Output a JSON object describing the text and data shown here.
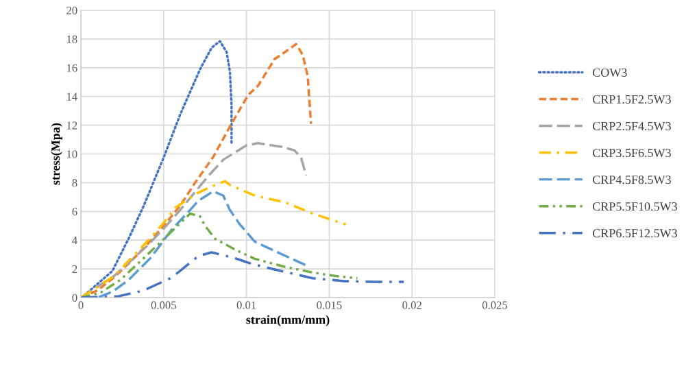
{
  "chart_data": {
    "type": "line",
    "xlabel": "strain(mm/mm)",
    "ylabel": "stress(Mpa)",
    "xlim": [
      0,
      0.025
    ],
    "xticks": [
      0,
      0.005,
      0.01,
      0.015,
      0.02,
      0.025
    ],
    "ylim": [
      0,
      20
    ],
    "yticks": [
      0,
      2,
      4,
      6,
      8,
      10,
      12,
      14,
      16,
      18,
      20
    ],
    "grid": true,
    "legend": "right",
    "marker": "none",
    "series": [
      {
        "name": "COW3",
        "color": "#4472c4",
        "line_style": "dotted",
        "x": [
          0,
          0.0003,
          0.0019,
          0.0029,
          0.0038,
          0.005,
          0.006,
          0.0072,
          0.0079,
          0.0084,
          0.0088,
          0.009,
          0.0091,
          0.0091
        ],
        "values": [
          0,
          0.25,
          1.85,
          4.15,
          6.4,
          9.75,
          12.75,
          15.9,
          17.4,
          17.85,
          17.1,
          15.75,
          13.4,
          10.6
        ]
      },
      {
        "name": "CRP1.5F2.5W3",
        "color": "#ed7d31",
        "line_style": "dashed",
        "x": [
          0,
          0.001,
          0.002,
          0.003,
          0.004,
          0.005,
          0.006,
          0.0069,
          0.008,
          0.009,
          0.0101,
          0.0107,
          0.0117,
          0.0124,
          0.013,
          0.0134,
          0.0137,
          0.0138,
          0.0139
        ],
        "values": [
          0,
          0.5,
          1.4,
          2.5,
          3.7,
          5.0,
          6.4,
          8.0,
          9.8,
          11.9,
          14.1,
          14.75,
          16.6,
          17.15,
          17.65,
          16.9,
          15.4,
          13.75,
          12.1
        ]
      },
      {
        "name": "CRP2.5F4.5W3",
        "color": "#a5a5a5",
        "line_style": "longdash",
        "x": [
          0,
          0.002,
          0.004,
          0.005,
          0.006,
          0.007,
          0.0078,
          0.0086,
          0.01,
          0.0107,
          0.0121,
          0.0129,
          0.0133,
          0.0136
        ],
        "values": [
          0,
          1.5,
          3.6,
          4.8,
          6.1,
          7.5,
          8.6,
          9.6,
          10.6,
          10.75,
          10.5,
          10.25,
          9.75,
          8.5
        ]
      },
      {
        "name": "CRP3.5F6.5W3",
        "color": "#ffc000",
        "line_style": "dashdot",
        "x": [
          0,
          0.002,
          0.004,
          0.005,
          0.0057,
          0.007,
          0.0079,
          0.0087,
          0.009,
          0.0104,
          0.0124,
          0.014,
          0.016
        ],
        "values": [
          0,
          1.5,
          3.9,
          5.2,
          6.25,
          7.25,
          7.75,
          8.1,
          7.85,
          7.15,
          6.6,
          5.85,
          5.1
        ]
      },
      {
        "name": "CRP4.5F8.5W3",
        "color": "#5b9bd5",
        "line_style": "longdash",
        "x": [
          0,
          0.001,
          0.0019,
          0.0029,
          0.0042,
          0.0055,
          0.0066,
          0.0071,
          0.008,
          0.0086,
          0.009,
          0.0096,
          0.0105,
          0.0117,
          0.0137
        ],
        "values": [
          0,
          0,
          0.4,
          1.25,
          2.75,
          4.75,
          6.1,
          6.75,
          7.4,
          7.1,
          6.1,
          5.1,
          3.9,
          3.25,
          2.2
        ]
      },
      {
        "name": "CRP5.5F10.5W3",
        "color": "#70ad47",
        "line_style": "dashdotdot",
        "x": [
          0,
          0.0012,
          0.0024,
          0.0038,
          0.0053,
          0.0066,
          0.0072,
          0.0075,
          0.0081,
          0.0093,
          0.0105,
          0.0123,
          0.014,
          0.0154,
          0.0167
        ],
        "values": [
          0,
          0.35,
          1.25,
          2.75,
          4.4,
          5.85,
          5.65,
          5.0,
          4.1,
          3.35,
          2.7,
          2.15,
          1.75,
          1.5,
          1.35
        ]
      },
      {
        "name": "CRP6.5F12.5W3",
        "color": "#4472c4",
        "line_style": "longdashdot",
        "x": [
          0,
          0.0023,
          0.0038,
          0.0055,
          0.0071,
          0.0079,
          0.0093,
          0.0103,
          0.0121,
          0.014,
          0.0159,
          0.0177,
          0.0195
        ],
        "values": [
          0,
          0.1,
          0.5,
          1.4,
          2.9,
          3.15,
          2.75,
          2.35,
          1.85,
          1.35,
          1.15,
          1.1,
          1.1
        ]
      }
    ]
  }
}
